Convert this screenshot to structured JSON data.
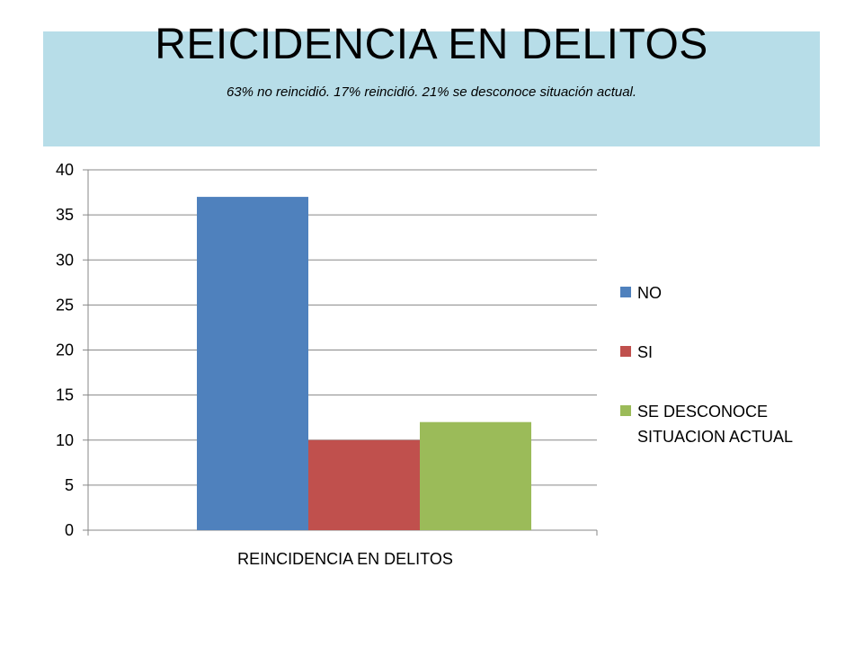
{
  "slide": {
    "title": "REICIDENCIA EN DELITOS",
    "subtitle": "63% no reincidió. 17% reincidió. 21% se desconoce situación actual."
  },
  "chart_data": {
    "type": "bar",
    "categories": [
      "REINCIDENCIA EN DELITOS"
    ],
    "series": [
      {
        "name": "NO",
        "values": [
          37
        ],
        "color": "#4f81bd"
      },
      {
        "name": "SI",
        "values": [
          10
        ],
        "color": "#c0504d"
      },
      {
        "name": "SE DESCONOCE SITUACION ACTUAL",
        "values": [
          12
        ],
        "color": "#9bbb59"
      }
    ],
    "legend_lines": [
      [
        "NO"
      ],
      [
        "SI"
      ],
      [
        "SE DESCONOCE",
        "SITUACION ACTUAL"
      ]
    ],
    "yticks": [
      "0",
      "5",
      "10",
      "15",
      "20",
      "25",
      "30",
      "35",
      "40"
    ],
    "ylim": [
      0,
      40
    ],
    "grid": true,
    "legend_position": "right"
  }
}
